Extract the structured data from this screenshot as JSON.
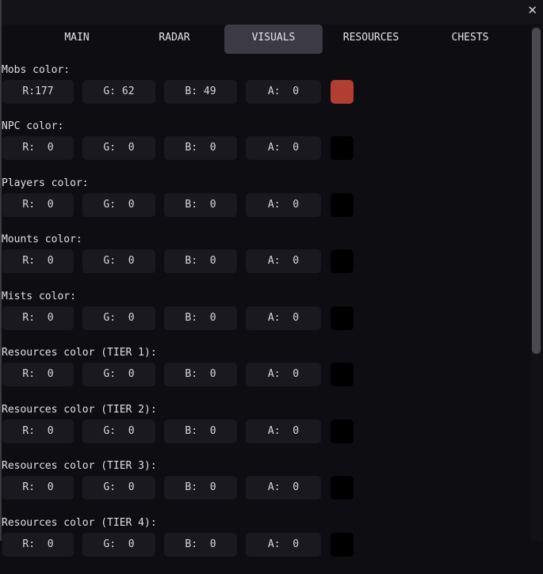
{
  "window": {
    "close_icon": "close-icon",
    "close_glyph": "✕"
  },
  "tabs": [
    {
      "label": "MAIN"
    },
    {
      "label": "RADAR"
    },
    {
      "label": "VISUALS",
      "active": true
    },
    {
      "label": "RESOURCES"
    },
    {
      "label": "CHESTS"
    }
  ],
  "sections": [
    {
      "label": "Mobs color:",
      "r": "R:177",
      "g": "G: 62",
      "b": "B: 49",
      "a": "A:  0",
      "swatch": "#b13e31"
    },
    {
      "label": "NPC color:",
      "r": "R:  0",
      "g": "G:  0",
      "b": "B:  0",
      "a": "A:  0",
      "swatch": "#000000"
    },
    {
      "label": "Players color:",
      "r": "R:  0",
      "g": "G:  0",
      "b": "B:  0",
      "a": "A:  0",
      "swatch": "#000000"
    },
    {
      "label": "Mounts color:",
      "r": "R:  0",
      "g": "G:  0",
      "b": "B:  0",
      "a": "A:  0",
      "swatch": "#000000"
    },
    {
      "label": "Mists color:",
      "r": "R:  0",
      "g": "G:  0",
      "b": "B:  0",
      "a": "A:  0",
      "swatch": "#000000"
    },
    {
      "label": "Resources color (TIER 1):",
      "r": "R:  0",
      "g": "G:  0",
      "b": "B:  0",
      "a": "A:  0",
      "swatch": "#000000"
    },
    {
      "label": "Resources color (TIER 2):",
      "r": "R:  0",
      "g": "G:  0",
      "b": "B:  0",
      "a": "A:  0",
      "swatch": "#000000"
    },
    {
      "label": "Resources color (TIER 3):",
      "r": "R:  0",
      "g": "G:  0",
      "b": "B:  0",
      "a": "A:  0",
      "swatch": "#000000"
    },
    {
      "label": "Resources color (TIER 4):",
      "r": "R:  0",
      "g": "G:  0",
      "b": "B:  0",
      "a": "A:  0",
      "swatch": "#000000"
    }
  ]
}
